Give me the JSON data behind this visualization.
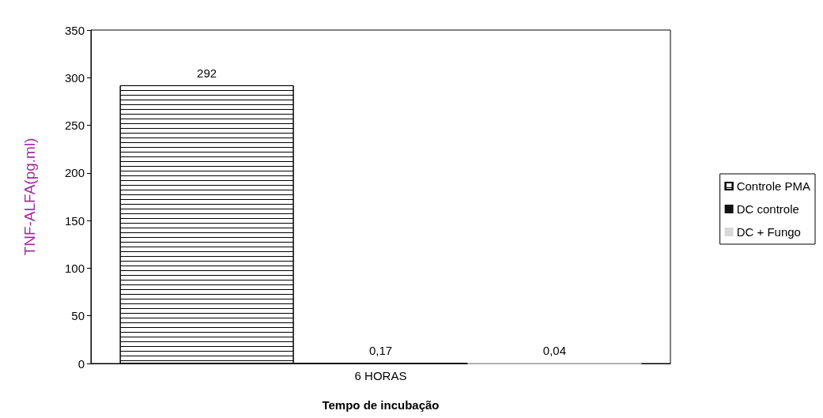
{
  "chart_data": {
    "type": "bar",
    "xlabel": "Tempo de incubação",
    "ylabel": "TNF-ALFA(pg.ml)",
    "categories": [
      "6 HORAS"
    ],
    "series": [
      {
        "name": "Controle PMA",
        "color": "#ffffff",
        "values": [
          292
        ],
        "value_labels": [
          "292"
        ]
      },
      {
        "name": "DC controle",
        "color": "#111111",
        "values": [
          0.17
        ],
        "value_labels": [
          "0,17"
        ]
      },
      {
        "name": "DC + Fungo",
        "color": "#d9d9d9",
        "values": [
          0.04
        ],
        "value_labels": [
          "0,04"
        ]
      }
    ],
    "ylim": [
      0,
      350
    ],
    "yticks": [
      0,
      50,
      100,
      150,
      200,
      250,
      300,
      350
    ],
    "grid": false,
    "legend": "right"
  }
}
